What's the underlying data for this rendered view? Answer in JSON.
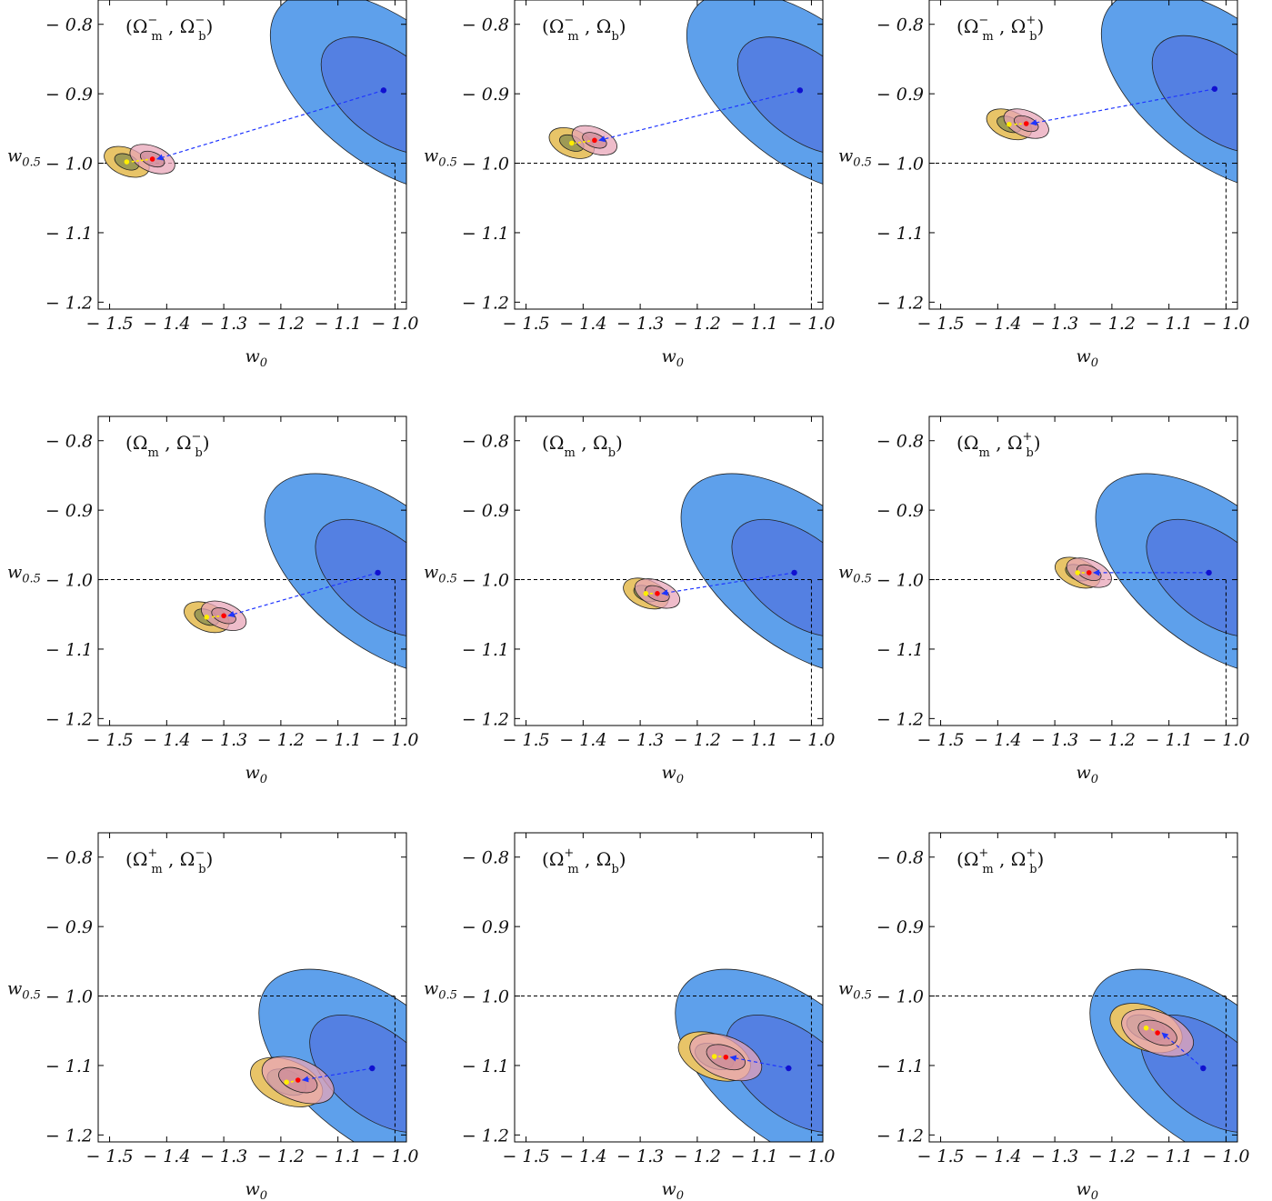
{
  "colors": {
    "blue_outer": "#5EA0EB",
    "blue_inner": "#5480E2",
    "orange_outer": "#E8C468",
    "orange_inner": "#9E9A55",
    "pink_outer": "#E8A6B8",
    "pink_inner": "#D08D9A",
    "arrow": "#1f35ff",
    "point_yellow": "#ffee00",
    "point_red": "#ff0000",
    "point_blue": "#1010d0"
  },
  "chart_data": [
    {
      "type": "scatter",
      "title_parts": [
        "Ω",
        "m",
        "−",
        "Ω",
        "b",
        "−"
      ],
      "xlabel": "w",
      "xlabel_sub": "0",
      "ylabel": "w",
      "ylabel_sub": "0.5",
      "xlim": [
        -1.52,
        -0.98
      ],
      "ylim": [
        -1.21,
        -0.765
      ],
      "xticks": [
        "− 1.5",
        "− 1.4",
        "− 1.3",
        "− 1.2",
        "− 1.1",
        "− 1.0"
      ],
      "yticks": [
        "− 0.8",
        "− 0.9",
        "− 1.0",
        "− 1.1",
        "− 1.2"
      ],
      "reference_point": [
        -1.0,
        -1.0
      ],
      "points": {
        "yellow": [
          -1.47,
          -0.998
        ],
        "red": [
          -1.425,
          -0.994
        ],
        "blue": [
          -1.02,
          -0.895
        ]
      }
    },
    {
      "type": "scatter",
      "title_parts": [
        "Ω",
        "m",
        "−",
        "Ω",
        "b",
        ""
      ],
      "xlabel": "w",
      "xlabel_sub": "0",
      "ylabel": "w",
      "ylabel_sub": "0.5",
      "xlim": [
        -1.52,
        -0.98
      ],
      "ylim": [
        -1.21,
        -0.765
      ],
      "xticks": [
        "− 1.5",
        "− 1.4",
        "− 1.3",
        "− 1.2",
        "− 1.1",
        "− 1.0"
      ],
      "yticks": [
        "− 0.8",
        "− 0.9",
        "− 1.0",
        "− 1.1",
        "− 1.2"
      ],
      "reference_point": [
        -1.0,
        -1.0
      ],
      "points": {
        "yellow": [
          -1.42,
          -0.971
        ],
        "red": [
          -1.38,
          -0.967
        ],
        "blue": [
          -1.02,
          -0.895
        ]
      }
    },
    {
      "type": "scatter",
      "title_parts": [
        "Ω",
        "m",
        "−",
        "Ω",
        "b",
        "+"
      ],
      "xlabel": "w",
      "xlabel_sub": "0",
      "ylabel": "w",
      "ylabel_sub": "0.5",
      "xlim": [
        -1.52,
        -0.98
      ],
      "ylim": [
        -1.21,
        -0.765
      ],
      "xticks": [
        "− 1.5",
        "− 1.4",
        "− 1.3",
        "− 1.2",
        "− 1.1",
        "− 1.0"
      ],
      "yticks": [
        "− 0.8",
        "− 0.9",
        "− 1.0",
        "− 1.1",
        "− 1.2"
      ],
      "reference_point": [
        -1.0,
        -1.0
      ],
      "points": {
        "yellow": [
          -1.38,
          -0.944
        ],
        "red": [
          -1.35,
          -0.943
        ],
        "blue": [
          -1.02,
          -0.893
        ]
      }
    },
    {
      "type": "scatter",
      "title_parts": [
        "Ω",
        "m",
        "",
        "Ω",
        "b",
        "−"
      ],
      "xlabel": "w",
      "xlabel_sub": "0",
      "ylabel": "w",
      "ylabel_sub": "0.5",
      "xlim": [
        -1.52,
        -0.98
      ],
      "ylim": [
        -1.21,
        -0.765
      ],
      "xticks": [
        "− 1.5",
        "− 1.4",
        "− 1.3",
        "− 1.2",
        "− 1.1",
        "− 1.0"
      ],
      "yticks": [
        "− 0.8",
        "− 0.9",
        "− 1.0",
        "− 1.1",
        "− 1.2"
      ],
      "reference_point": [
        -1.0,
        -1.0
      ],
      "points": {
        "yellow": [
          -1.33,
          -1.054
        ],
        "red": [
          -1.3,
          -1.052
        ],
        "blue": [
          -1.03,
          -0.99
        ]
      }
    },
    {
      "type": "scatter",
      "title_parts": [
        "Ω",
        "m",
        "",
        "Ω",
        "b",
        ""
      ],
      "xlabel": "w",
      "xlabel_sub": "0",
      "ylabel": "w",
      "ylabel_sub": "0.5",
      "xlim": [
        -1.52,
        -0.98
      ],
      "ylim": [
        -1.21,
        -0.765
      ],
      "xticks": [
        "− 1.5",
        "− 1.4",
        "− 1.3",
        "− 1.2",
        "− 1.1",
        "− 1.0"
      ],
      "yticks": [
        "− 0.8",
        "− 0.9",
        "− 1.0",
        "− 1.1",
        "− 1.2"
      ],
      "reference_point": [
        -1.0,
        -1.0
      ],
      "points": {
        "yellow": [
          -1.29,
          -1.02
        ],
        "red": [
          -1.27,
          -1.02
        ],
        "blue": [
          -1.03,
          -0.99
        ]
      }
    },
    {
      "type": "scatter",
      "title_parts": [
        "Ω",
        "m",
        "",
        "Ω",
        "b",
        "+"
      ],
      "xlabel": "w",
      "xlabel_sub": "0",
      "ylabel": "w",
      "ylabel_sub": "0.5",
      "xlim": [
        -1.52,
        -0.98
      ],
      "ylim": [
        -1.21,
        -0.765
      ],
      "xticks": [
        "− 1.5",
        "− 1.4",
        "− 1.3",
        "− 1.2",
        "− 1.1",
        "− 1.0"
      ],
      "yticks": [
        "− 0.8",
        "− 0.9",
        "− 1.0",
        "− 1.1",
        "− 1.2"
      ],
      "reference_point": [
        -1.0,
        -1.0
      ],
      "points": {
        "yellow": [
          -1.26,
          -0.99
        ],
        "red": [
          -1.24,
          -0.99
        ],
        "blue": [
          -1.03,
          -0.99
        ]
      }
    },
    {
      "type": "scatter",
      "title_parts": [
        "Ω",
        "m",
        "+",
        "Ω",
        "b",
        "−"
      ],
      "xlabel": "w",
      "xlabel_sub": "0",
      "ylabel": "w",
      "ylabel_sub": "0.5",
      "xlim": [
        -1.52,
        -0.98
      ],
      "ylim": [
        -1.21,
        -0.765
      ],
      "xticks": [
        "− 1.5",
        "− 1.4",
        "− 1.3",
        "− 1.2",
        "− 1.1",
        "− 1.0"
      ],
      "yticks": [
        "− 0.8",
        "− 0.9",
        "− 1.0",
        "− 1.1",
        "− 1.2"
      ],
      "reference_point": [
        -1.0,
        -1.0
      ],
      "points": {
        "yellow": [
          -1.19,
          -1.124
        ],
        "red": [
          -1.17,
          -1.121
        ],
        "blue": [
          -1.04,
          -1.104
        ]
      }
    },
    {
      "type": "scatter",
      "title_parts": [
        "Ω",
        "m",
        "+",
        "Ω",
        "b",
        ""
      ],
      "xlabel": "w",
      "xlabel_sub": "0",
      "ylabel": "w",
      "ylabel_sub": "0.5",
      "xlim": [
        -1.52,
        -0.98
      ],
      "ylim": [
        -1.21,
        -0.765
      ],
      "xticks": [
        "− 1.5",
        "− 1.4",
        "− 1.3",
        "− 1.2",
        "− 1.1",
        "− 1.0"
      ],
      "yticks": [
        "− 0.8",
        "− 0.9",
        "− 1.0",
        "− 1.1",
        "− 1.2"
      ],
      "reference_point": [
        -1.0,
        -1.0
      ],
      "points": {
        "yellow": [
          -1.17,
          -1.087
        ],
        "red": [
          -1.15,
          -1.088
        ],
        "blue": [
          -1.04,
          -1.104
        ]
      }
    },
    {
      "type": "scatter",
      "title_parts": [
        "Ω",
        "m",
        "+",
        "Ω",
        "b",
        "+"
      ],
      "xlabel": "w",
      "xlabel_sub": "0",
      "ylabel": "w",
      "ylabel_sub": "0.5",
      "xlim": [
        -1.52,
        -0.98
      ],
      "ylim": [
        -1.21,
        -0.765
      ],
      "xticks": [
        "− 1.5",
        "− 1.4",
        "− 1.3",
        "− 1.2",
        "− 1.1",
        "− 1.0"
      ],
      "yticks": [
        "− 0.8",
        "− 0.9",
        "− 1.0",
        "− 1.1",
        "− 1.2"
      ],
      "reference_point": [
        -1.0,
        -1.0
      ],
      "points": {
        "yellow": [
          -1.14,
          -1.046
        ],
        "red": [
          -1.12,
          -1.053
        ],
        "blue": [
          -1.04,
          -1.104
        ]
      }
    }
  ]
}
